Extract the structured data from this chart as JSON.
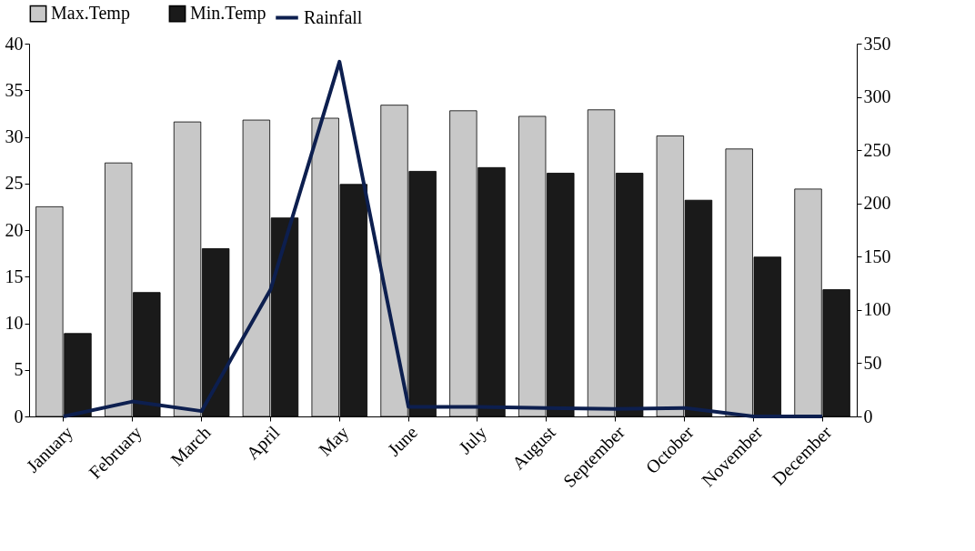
{
  "chart_data": {
    "type": "bar",
    "categories": [
      "January",
      "February",
      "March",
      "April",
      "May",
      "June",
      "July",
      "August",
      "September",
      "October",
      "November",
      "December"
    ],
    "series": [
      {
        "name": "Max.Temp",
        "color": "#c8c8c8",
        "values": [
          22.5,
          27.2,
          31.6,
          31.8,
          32.0,
          33.4,
          32.8,
          32.2,
          32.9,
          30.1,
          28.7,
          24.4
        ]
      },
      {
        "name": "Min.Temp",
        "color": "#1a1a1a",
        "values": [
          8.9,
          13.3,
          18.0,
          21.3,
          24.9,
          26.3,
          26.7,
          26.1,
          26.1,
          23.2,
          17.1,
          13.6
        ]
      },
      {
        "name": "Rainfall",
        "type": "line",
        "axis": "y2",
        "color": "#0d1f4f",
        "values": [
          0,
          14,
          5,
          119,
          333,
          9,
          9,
          8,
          7,
          8,
          0,
          0
        ]
      }
    ],
    "ylim": [
      0,
      40
    ],
    "yticks": [
      0,
      5,
      10,
      15,
      20,
      25,
      30,
      35,
      40
    ],
    "y2lim": [
      0,
      350
    ],
    "y2ticks": [
      0,
      50,
      100,
      150,
      200,
      250,
      300,
      350
    ],
    "legend": "top",
    "grid": false,
    "marker": "none",
    "line_style": "solid"
  }
}
